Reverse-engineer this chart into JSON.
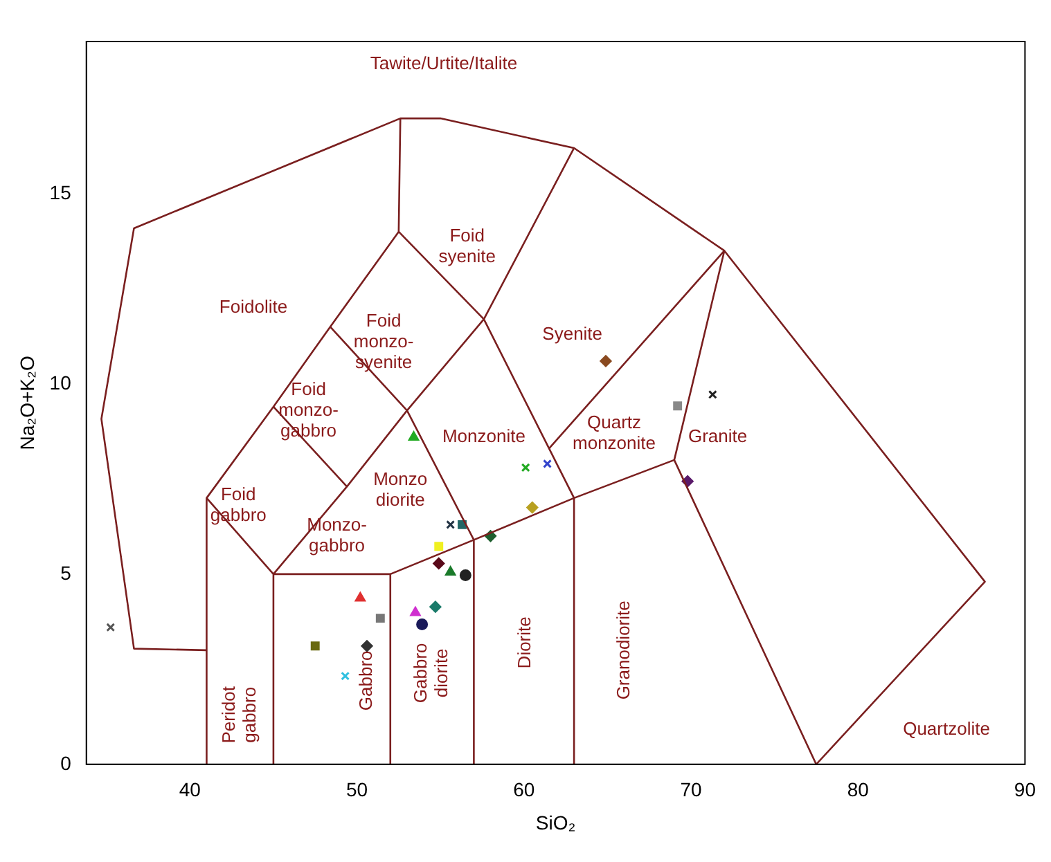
{
  "chart_data": {
    "type": "scatter",
    "xlabel": "SiO₂",
    "ylabel": "Na₂O+K₂O",
    "xlim": [
      33.8,
      90
    ],
    "ylim": [
      0,
      19
    ],
    "xticks": [
      40,
      50,
      60,
      70,
      80,
      90
    ],
    "yticks": [
      0,
      5,
      10,
      15
    ],
    "grid": false,
    "legend": false,
    "series": [
      {
        "type": "line",
        "color": "#7a1f1f",
        "marker": "none",
        "x": [
          41,
          36.65,
          34.7,
          36.65,
          52.6,
          55,
          63,
          72,
          87.6,
          77.5,
          69,
          72
        ],
        "values": [
          3,
          3.04,
          9.08,
          14.09,
          16.98,
          16.98,
          16.2,
          13.5,
          4.8,
          0,
          8,
          13.5
        ]
      },
      {
        "type": "line",
        "color": "#7a1f1f",
        "marker": "none",
        "x": [
          41,
          41,
          45,
          48.4,
          52.5,
          52.6,
          null,
          52.5,
          57.6,
          63,
          null,
          57.6,
          63,
          69
        ],
        "values": [
          0,
          7,
          9.4,
          11.5,
          14,
          16.98,
          null,
          14,
          11.7,
          16.2,
          null,
          11.7,
          7,
          8
        ]
      },
      {
        "type": "line",
        "color": "#7a1f1f",
        "marker": "none",
        "x": [
          45,
          45,
          49.4,
          53,
          57.6,
          null,
          41,
          45,
          52,
          52,
          null,
          45,
          49.4,
          null,
          48.4,
          53,
          57,
          57,
          null,
          52,
          57,
          63,
          63,
          null,
          72,
          61.5
        ],
        "values": [
          0,
          5,
          7.3,
          9.3,
          11.7,
          null,
          7,
          5,
          5,
          0,
          null,
          9.4,
          7.3,
          null,
          11.5,
          9.3,
          5.9,
          0,
          null,
          5,
          5.9,
          7,
          0,
          null,
          13.5,
          8.3
        ]
      },
      {
        "color": "#555555",
        "marker": "cross",
        "x": [
          35.25
        ],
        "values": [
          3.6
        ]
      },
      {
        "color": "#22aa22",
        "marker": "triangle",
        "x": [
          53.4
        ],
        "values": [
          8.6
        ]
      },
      {
        "color": "#22aa22",
        "marker": "cross",
        "x": [
          60.1
        ],
        "values": [
          7.8
        ]
      },
      {
        "color": "#3344cc",
        "marker": "cross",
        "x": [
          61.4
        ],
        "values": [
          7.9
        ]
      },
      {
        "color": "#b8a020",
        "marker": "diamond",
        "x": [
          60.5
        ],
        "values": [
          6.75
        ]
      },
      {
        "color": "#223344",
        "marker": "cross",
        "x": [
          55.6
        ],
        "values": [
          6.3
        ]
      },
      {
        "color": "#226666",
        "marker": "square",
        "x": [
          56.3
        ],
        "values": [
          6.3
        ]
      },
      {
        "color": "#1f5f2f",
        "marker": "diamond",
        "x": [
          58
        ],
        "values": [
          6
        ]
      },
      {
        "color": "#f0f020",
        "marker": "square",
        "x": [
          54.9
        ],
        "values": [
          5.73
        ]
      },
      {
        "color": "#5a0a1a",
        "marker": "diamond",
        "x": [
          54.9
        ],
        "values": [
          5.28
        ]
      },
      {
        "color": "#1a7a2a",
        "marker": "triangle",
        "x": [
          55.6
        ],
        "values": [
          5.05
        ]
      },
      {
        "color": "#222222",
        "marker": "circle",
        "x": [
          56.5
        ],
        "values": [
          4.97
        ]
      },
      {
        "color": "#e03030",
        "marker": "triangle",
        "x": [
          50.2
        ],
        "values": [
          4.37
        ]
      },
      {
        "color": "#1a7a6a",
        "marker": "diamond",
        "x": [
          54.7
        ],
        "values": [
          4.14
        ]
      },
      {
        "color": "#d030d0",
        "marker": "triangle",
        "x": [
          53.5
        ],
        "values": [
          3.99
        ]
      },
      {
        "color": "#1a1a5a",
        "marker": "circle",
        "x": [
          53.9
        ],
        "values": [
          3.68
        ]
      },
      {
        "color": "#777777",
        "marker": "square",
        "x": [
          51.4
        ],
        "values": [
          3.84
        ]
      },
      {
        "color": "#333333",
        "marker": "diamond",
        "x": [
          50.6
        ],
        "values": [
          3.11
        ]
      },
      {
        "color": "#6a6a10",
        "marker": "square",
        "x": [
          47.5
        ],
        "values": [
          3.11
        ]
      },
      {
        "color": "#30c0e0",
        "marker": "cross",
        "x": [
          49.3
        ],
        "values": [
          2.32
        ]
      },
      {
        "color": "#888888",
        "marker": "square",
        "x": [
          69.2
        ],
        "values": [
          9.42
        ]
      },
      {
        "color": "#222222",
        "marker": "cross",
        "x": [
          71.3
        ],
        "values": [
          9.72
        ]
      },
      {
        "color": "#8a4a20",
        "marker": "diamond",
        "x": [
          64.9
        ],
        "values": [
          10.6
        ]
      },
      {
        "color": "#5a1a6a",
        "marker": "diamond",
        "x": [
          69.8
        ],
        "values": [
          7.44
        ]
      }
    ],
    "annotations": [
      "Tawite/Urtite/Italite",
      "Foid\nsyenite",
      "Foidolite",
      "Foid\nmonzo-\nsyenite",
      "Syenite",
      "Foid\nmonzo-\ngabbro",
      "Monzonite",
      "Quartz\nmonzonite",
      "Granite",
      "Foid\ngabbro",
      "Monzo\ndiorite",
      "Monzo-\ngabbro",
      "Gabbro",
      "Gabbro\ndiorite",
      "Diorite",
      "Granodiorite",
      "Peridot\ngabbro",
      "Quartzolite"
    ]
  }
}
